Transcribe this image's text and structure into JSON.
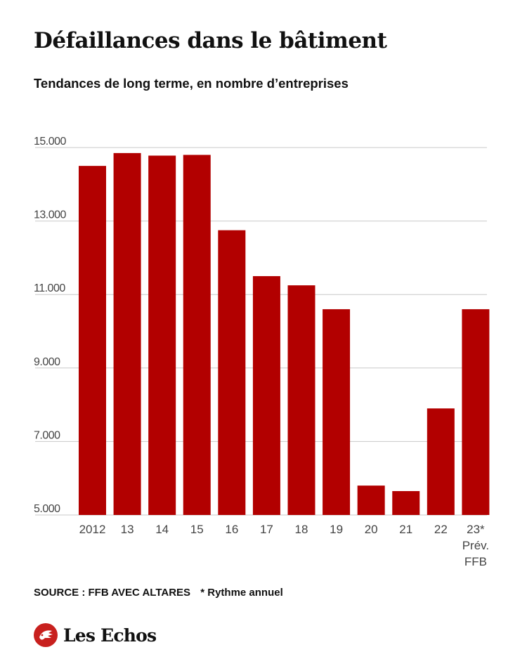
{
  "header": {
    "title": "Défaillances dans le bâtiment",
    "subtitle": "Tendances de long terme, en nombre d’entreprises"
  },
  "chart_data": {
    "type": "bar",
    "categories": [
      "2012",
      "13",
      "14",
      "15",
      "16",
      "17",
      "18",
      "19",
      "20",
      "21",
      "22",
      "23*"
    ],
    "category_sublabels": {
      "23*": [
        "Prév.",
        "FFB"
      ]
    },
    "values": [
      14500,
      14850,
      14780,
      14800,
      12750,
      11500,
      11250,
      10600,
      5800,
      5650,
      7900,
      10600
    ],
    "yticks": [
      5000,
      7000,
      9000,
      11000,
      13000,
      15000
    ],
    "ytick_labels": [
      "5.000",
      "7.000",
      "9.000",
      "11.000",
      "13.000",
      "15.000"
    ],
    "ylim": [
      5000,
      15300
    ],
    "grid": true,
    "bar_color": "#b20000",
    "grid_color": "#c8c8c8"
  },
  "footer": {
    "source": "SOURCE : FFB AVEC ALTARES",
    "note": "* Rythme annuel"
  },
  "logo": {
    "text": "Les Echos",
    "icon": "les-echos-logo-icon",
    "color": "#c8201e"
  }
}
